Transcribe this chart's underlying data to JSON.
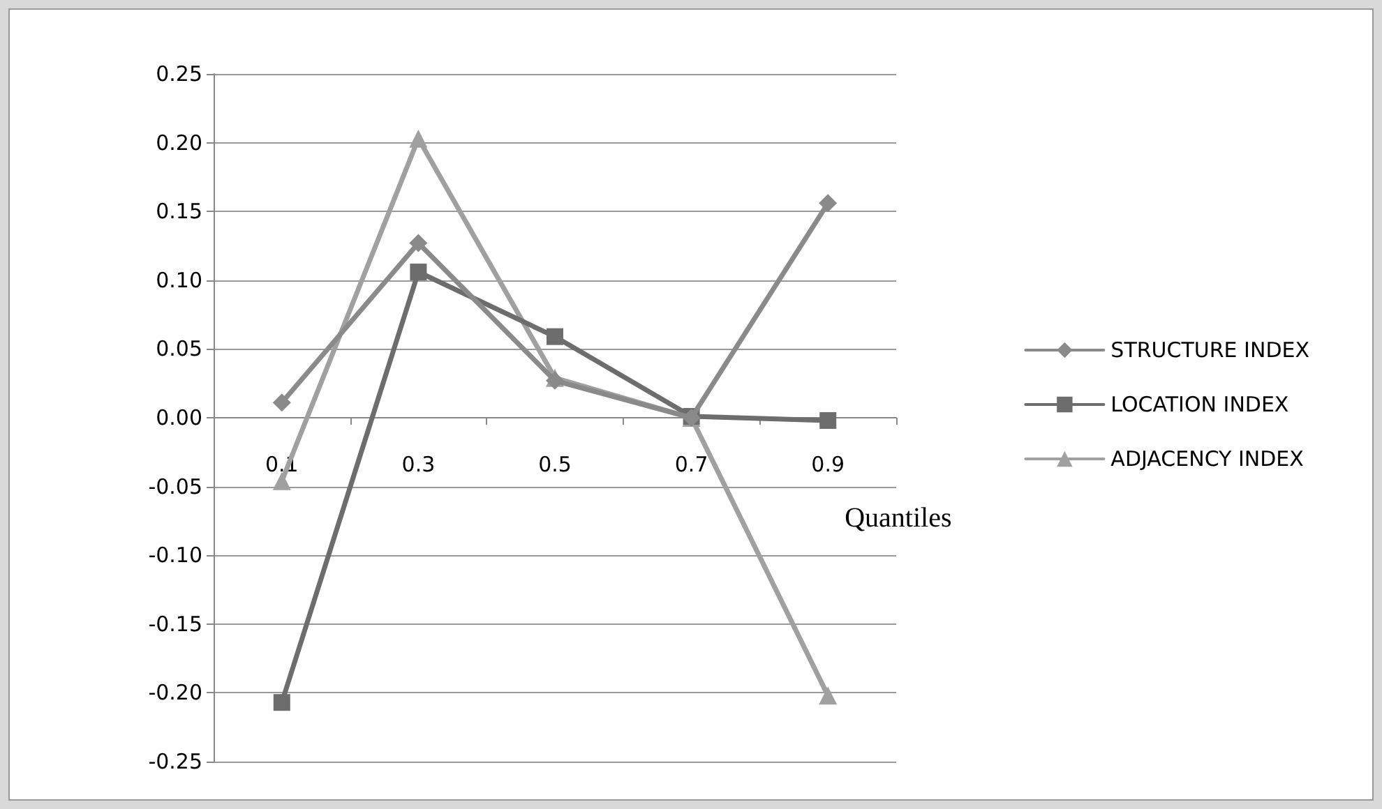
{
  "chart_data": {
    "type": "line",
    "xlabel": "Quantiles",
    "categories": [
      "0.1",
      "0.3",
      "0.5",
      "0.7",
      "0.9"
    ],
    "series": [
      {
        "name": "STRUCTURE INDEX",
        "color": "#8a8a8a",
        "marker": "diamond",
        "values": [
          0.011,
          0.127,
          0.027,
          0.0,
          0.156
        ]
      },
      {
        "name": "LOCATION INDEX",
        "color": "#6d6d6d",
        "marker": "square",
        "values": [
          -0.207,
          0.106,
          0.059,
          0.001,
          -0.002
        ]
      },
      {
        "name": "ADJACENCY INDEX",
        "color": "#a0a0a0",
        "marker": "triangle",
        "values": [
          -0.046,
          0.203,
          0.029,
          0.0,
          -0.202
        ]
      }
    ],
    "ylim": [
      -0.25,
      0.25
    ],
    "yticks": [
      {
        "value": -0.25,
        "label": "-0.25"
      },
      {
        "value": -0.2,
        "label": "-0.20"
      },
      {
        "value": -0.15,
        "label": "-0.15"
      },
      {
        "value": -0.1,
        "label": "-0.10"
      },
      {
        "value": -0.05,
        "label": "-0.05"
      },
      {
        "value": 0,
        "label": "0.00"
      },
      {
        "value": 0.05,
        "label": "0.05"
      },
      {
        "value": 0.1,
        "label": "0.10"
      },
      {
        "value": 0.15,
        "label": "0.15"
      },
      {
        "value": 0.2,
        "label": "0.20"
      },
      {
        "value": 0.25,
        "label": "0.25"
      }
    ],
    "grid": "y",
    "legend": "right",
    "line_style": "solid"
  }
}
